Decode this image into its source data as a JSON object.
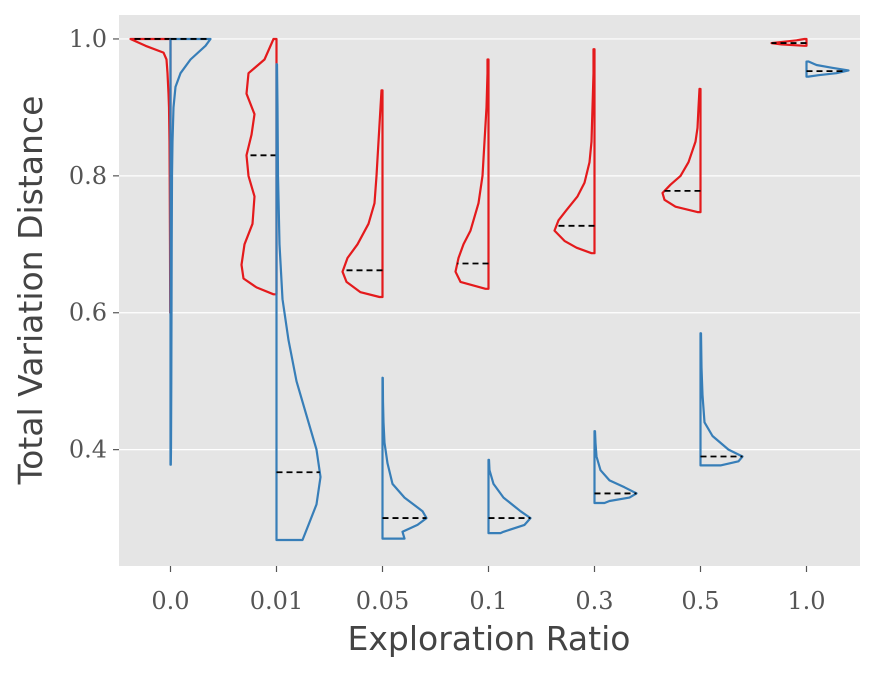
{
  "chart_data": {
    "type": "violin",
    "title": "",
    "xlabel": "Exploration Ratio",
    "ylabel": "Total Variation Distance",
    "categories": [
      "0.0",
      "0.01",
      "0.05",
      "0.1",
      "0.3",
      "0.5",
      "1.0"
    ],
    "ylim": [
      0.23,
      1.035
    ],
    "yticks": [
      0.4,
      0.6,
      0.8,
      1.0
    ],
    "ytick_labels": [
      "0.4",
      "0.6",
      "0.8",
      "1.0"
    ],
    "grid": true,
    "background": "#e5e5e5",
    "series": [
      {
        "color": "#e41a1c",
        "side": "left",
        "violins": [
          {
            "min": 0.6,
            "max": 1.0,
            "median": 1.0,
            "profile": [
              [
                1.0,
                0.4
              ],
              [
                0.99,
                0.25
              ],
              [
                0.98,
                0.07
              ],
              [
                0.97,
                0.04
              ],
              [
                0.95,
                0.03
              ],
              [
                0.92,
                0.02
              ],
              [
                0.9,
                0.015
              ],
              [
                0.85,
                0.01
              ],
              [
                0.8,
                0.008
              ],
              [
                0.7,
                0.005
              ],
              [
                0.6,
                0.003
              ]
            ]
          },
          {
            "min": 0.627,
            "max": 1.0,
            "median": 0.83,
            "profile": [
              [
                1.0,
                0.03
              ],
              [
                0.97,
                0.12
              ],
              [
                0.95,
                0.28
              ],
              [
                0.92,
                0.3
              ],
              [
                0.89,
                0.22
              ],
              [
                0.86,
                0.25
              ],
              [
                0.83,
                0.3
              ],
              [
                0.8,
                0.28
              ],
              [
                0.77,
                0.22
              ],
              [
                0.73,
                0.24
              ],
              [
                0.7,
                0.32
              ],
              [
                0.67,
                0.35
              ],
              [
                0.65,
                0.33
              ],
              [
                0.637,
                0.2
              ],
              [
                0.627,
                0.03
              ]
            ]
          },
          {
            "min": 0.623,
            "max": 0.925,
            "median": 0.662,
            "profile": [
              [
                0.925,
                0.01
              ],
              [
                0.9,
                0.02
              ],
              [
                0.85,
                0.04
              ],
              [
                0.8,
                0.06
              ],
              [
                0.76,
                0.08
              ],
              [
                0.73,
                0.14
              ],
              [
                0.7,
                0.25
              ],
              [
                0.68,
                0.35
              ],
              [
                0.66,
                0.4
              ],
              [
                0.645,
                0.36
              ],
              [
                0.63,
                0.22
              ],
              [
                0.623,
                0.03
              ]
            ]
          },
          {
            "min": 0.635,
            "max": 0.97,
            "median": 0.672,
            "profile": [
              [
                0.97,
                0.01
              ],
              [
                0.95,
                0.01
              ],
              [
                0.9,
                0.02
              ],
              [
                0.85,
                0.04
              ],
              [
                0.8,
                0.06
              ],
              [
                0.76,
                0.1
              ],
              [
                0.72,
                0.18
              ],
              [
                0.7,
                0.25
              ],
              [
                0.68,
                0.3
              ],
              [
                0.66,
                0.33
              ],
              [
                0.645,
                0.28
              ],
              [
                0.635,
                0.03
              ]
            ]
          },
          {
            "min": 0.687,
            "max": 0.985,
            "median": 0.727,
            "profile": [
              [
                0.985,
                0.01
              ],
              [
                0.95,
                0.01
              ],
              [
                0.9,
                0.02
              ],
              [
                0.85,
                0.03
              ],
              [
                0.82,
                0.05
              ],
              [
                0.79,
                0.1
              ],
              [
                0.77,
                0.17
              ],
              [
                0.75,
                0.28
              ],
              [
                0.735,
                0.36
              ],
              [
                0.72,
                0.4
              ],
              [
                0.705,
                0.3
              ],
              [
                0.695,
                0.18
              ],
              [
                0.687,
                0.03
              ]
            ]
          },
          {
            "min": 0.747,
            "max": 0.927,
            "median": 0.778,
            "profile": [
              [
                0.927,
                0.01
              ],
              [
                0.9,
                0.02
              ],
              [
                0.87,
                0.03
              ],
              [
                0.85,
                0.05
              ],
              [
                0.82,
                0.12
              ],
              [
                0.8,
                0.2
              ],
              [
                0.787,
                0.3
              ],
              [
                0.775,
                0.38
              ],
              [
                0.765,
                0.36
              ],
              [
                0.755,
                0.25
              ],
              [
                0.747,
                0.03
              ]
            ]
          },
          {
            "min": 0.99,
            "max": 1.0,
            "median": 0.994,
            "profile": [
              [
                1.0,
                0.02
              ],
              [
                0.998,
                0.1
              ],
              [
                0.996,
                0.22
              ],
              [
                0.994,
                0.35
              ],
              [
                0.992,
                0.25
              ],
              [
                0.99,
                0.02
              ]
            ]
          }
        ]
      },
      {
        "color": "#377eb8",
        "side": "right",
        "violins": [
          {
            "min": 0.378,
            "max": 1.0,
            "median": 1.0,
            "profile": [
              [
                1.0,
                0.4
              ],
              [
                0.99,
                0.35
              ],
              [
                0.97,
                0.2
              ],
              [
                0.95,
                0.1
              ],
              [
                0.93,
                0.05
              ],
              [
                0.9,
                0.03
              ],
              [
                0.85,
                0.02
              ],
              [
                0.8,
                0.015
              ],
              [
                0.7,
                0.012
              ],
              [
                0.6,
                0.01
              ],
              [
                0.5,
                0.008
              ],
              [
                0.4,
                0.005
              ],
              [
                0.378,
                0.003
              ]
            ]
          },
          {
            "min": 0.268,
            "max": 0.963,
            "median": 0.367,
            "profile": [
              [
                0.963,
                0.005
              ],
              [
                0.9,
                0.01
              ],
              [
                0.8,
                0.015
              ],
              [
                0.7,
                0.03
              ],
              [
                0.62,
                0.06
              ],
              [
                0.56,
                0.12
              ],
              [
                0.5,
                0.2
              ],
              [
                0.45,
                0.3
              ],
              [
                0.4,
                0.4
              ],
              [
                0.36,
                0.44
              ],
              [
                0.32,
                0.4
              ],
              [
                0.29,
                0.32
              ],
              [
                0.268,
                0.26
              ]
            ]
          },
          {
            "min": 0.27,
            "max": 0.505,
            "median": 0.3,
            "profile": [
              [
                0.505,
                0.003
              ],
              [
                0.47,
                0.005
              ],
              [
                0.44,
                0.01
              ],
              [
                0.41,
                0.02
              ],
              [
                0.38,
                0.05
              ],
              [
                0.35,
                0.1
              ],
              [
                0.33,
                0.22
              ],
              [
                0.31,
                0.4
              ],
              [
                0.3,
                0.44
              ],
              [
                0.29,
                0.35
              ],
              [
                0.28,
                0.2
              ],
              [
                0.27,
                0.22
              ]
            ]
          },
          {
            "min": 0.278,
            "max": 0.385,
            "median": 0.3,
            "profile": [
              [
                0.385,
                0.005
              ],
              [
                0.37,
                0.01
              ],
              [
                0.35,
                0.05
              ],
              [
                0.33,
                0.15
              ],
              [
                0.31,
                0.32
              ],
              [
                0.3,
                0.42
              ],
              [
                0.29,
                0.36
              ],
              [
                0.28,
                0.15
              ],
              [
                0.278,
                0.12
              ]
            ]
          },
          {
            "min": 0.322,
            "max": 0.427,
            "median": 0.336,
            "profile": [
              [
                0.427,
                0.005
              ],
              [
                0.41,
                0.01
              ],
              [
                0.39,
                0.02
              ],
              [
                0.37,
                0.06
              ],
              [
                0.355,
                0.15
              ],
              [
                0.345,
                0.3
              ],
              [
                0.336,
                0.42
              ],
              [
                0.33,
                0.35
              ],
              [
                0.325,
                0.15
              ],
              [
                0.322,
                0.1
              ]
            ]
          },
          {
            "min": 0.377,
            "max": 0.57,
            "median": 0.39,
            "profile": [
              [
                0.57,
                0.005
              ],
              [
                0.52,
                0.01
              ],
              [
                0.48,
                0.02
              ],
              [
                0.44,
                0.04
              ],
              [
                0.42,
                0.12
              ],
              [
                0.4,
                0.28
              ],
              [
                0.39,
                0.42
              ],
              [
                0.383,
                0.38
              ],
              [
                0.377,
                0.2
              ]
            ]
          },
          {
            "min": 0.945,
            "max": 0.967,
            "median": 0.953,
            "profile": [
              [
                0.967,
                0.02
              ],
              [
                0.962,
                0.1
              ],
              [
                0.958,
                0.25
              ],
              [
                0.954,
                0.42
              ],
              [
                0.95,
                0.3
              ],
              [
                0.947,
                0.12
              ],
              [
                0.945,
                0.02
              ]
            ]
          }
        ]
      }
    ]
  }
}
